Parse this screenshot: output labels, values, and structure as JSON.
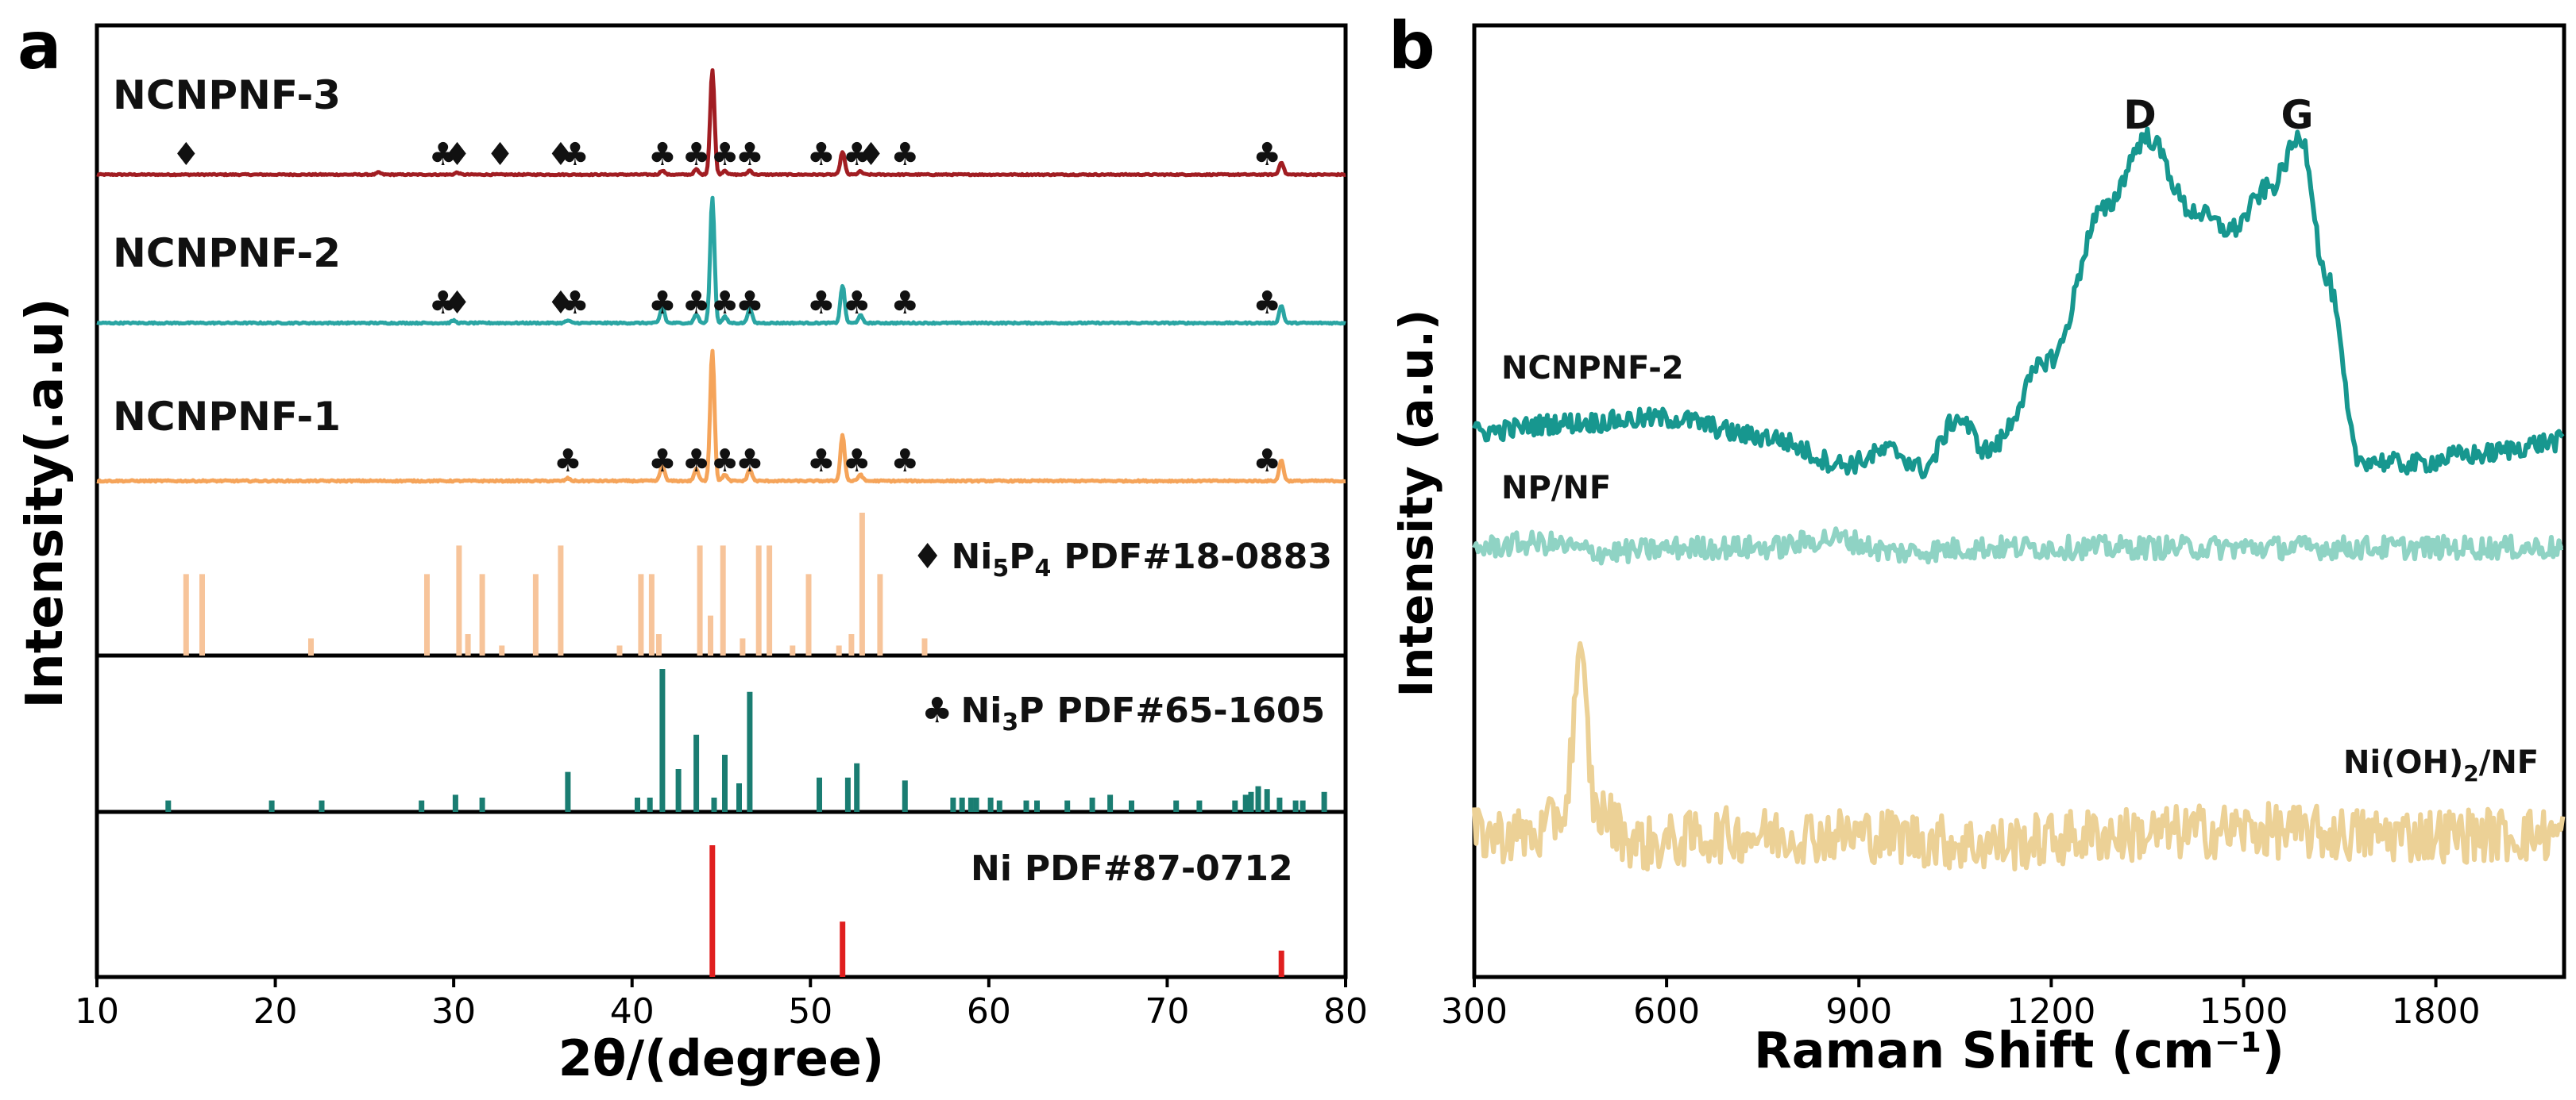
{
  "panels": {
    "a": {
      "letter": "a",
      "xlabel": "2θ/(degree)",
      "ylabel": "Intensity(.a.u)",
      "xlim": [
        10,
        80
      ],
      "xticks": [
        10,
        20,
        30,
        40,
        50,
        60,
        70,
        80
      ],
      "samples": [
        {
          "name": "NCNPNF-3",
          "color": "#a11d22"
        },
        {
          "name": "NCNPNF-2",
          "color": "#2aa5a3"
        },
        {
          "name": "NCNPNF-1",
          "color": "#f5a45a"
        }
      ],
      "references": [
        {
          "marker": "♦",
          "formula_main": "Ni",
          "formula_sub": "5",
          "formula_after": "P",
          "formula_sub2": "4",
          "label": "PDF#18-0883",
          "color": "#f7c49a"
        },
        {
          "marker": "♣",
          "formula_main": "Ni",
          "formula_sub": "3",
          "formula_after": "P",
          "formula_sub2": "",
          "label": "PDF#65-1605",
          "color": "#1a7d72"
        },
        {
          "marker": "",
          "formula_main": "Ni",
          "formula_sub": "",
          "formula_after": "",
          "formula_sub2": "",
          "label": "PDF#87-0712",
          "color": "#e01f1f"
        }
      ]
    },
    "b": {
      "letter": "b",
      "xlabel": "Raman Shift (cm⁻¹)",
      "ylabel": "Intensity (a.u.)",
      "xlim": [
        300,
        2000
      ],
      "xticks": [
        300,
        600,
        900,
        1200,
        1500,
        1800
      ],
      "peak_labels": [
        {
          "text": "D",
          "x": 1350
        },
        {
          "text": "G",
          "x": 1590
        }
      ],
      "series": [
        {
          "name": "NCNPNF-2",
          "color": "#17978f"
        },
        {
          "name": "NP/NF",
          "color": "#8fd3c4"
        },
        {
          "name_main": "Ni(OH)",
          "name_sub": "2",
          "name_after": "/NF",
          "color": "#ecd196"
        }
      ]
    }
  },
  "chart_data": [
    {
      "type": "line",
      "panel": "a",
      "xlabel": "2θ/(degree)",
      "ylabel": "Intensity(.a.u)",
      "xlim": [
        10,
        80
      ],
      "series": [
        {
          "name": "NCNPNF-3",
          "peaks": [
            [
              44.5,
              1.0
            ],
            [
              51.8,
              0.22
            ],
            [
              76.4,
              0.12
            ],
            [
              41.7,
              0.04
            ],
            [
              43.6,
              0.05
            ],
            [
              45.2,
              0.04
            ],
            [
              46.6,
              0.04
            ],
            [
              52.8,
              0.03
            ],
            [
              25.8,
              0.02
            ],
            [
              30.2,
              0.02
            ]
          ]
        },
        {
          "name": "NCNPNF-2",
          "peaks": [
            [
              44.5,
              1.0
            ],
            [
              51.8,
              0.3
            ],
            [
              76.4,
              0.14
            ],
            [
              41.7,
              0.13
            ],
            [
              43.6,
              0.07
            ],
            [
              45.2,
              0.05
            ],
            [
              46.6,
              0.12
            ],
            [
              52.8,
              0.06
            ],
            [
              30.0,
              0.02
            ],
            [
              36.4,
              0.02
            ]
          ]
        },
        {
          "name": "NCNPNF-1",
          "peaks": [
            [
              44.5,
              1.0
            ],
            [
              51.8,
              0.35
            ],
            [
              76.4,
              0.16
            ],
            [
              41.7,
              0.12
            ],
            [
              43.6,
              0.09
            ],
            [
              45.2,
              0.05
            ],
            [
              46.6,
              0.09
            ],
            [
              52.8,
              0.05
            ],
            [
              36.4,
              0.02
            ]
          ]
        }
      ],
      "sample_markers": [
        {
          "name": "NCNPNF-3",
          "club": [
            29.4,
            36.8,
            41.7,
            43.6,
            45.2,
            46.6,
            50.6,
            52.6,
            55.3,
            75.6
          ],
          "diamond": [
            15.0,
            30.2,
            32.6,
            36.0,
            53.4
          ]
        },
        {
          "name": "NCNPNF-2",
          "club": [
            29.4,
            36.8,
            41.7,
            43.6,
            45.2,
            46.6,
            50.6,
            52.6,
            55.3,
            75.6
          ],
          "diamond": [
            30.2,
            36.0
          ]
        },
        {
          "name": "NCNPNF-1",
          "club": [
            36.4,
            41.7,
            43.6,
            45.2,
            46.6,
            50.6,
            52.6,
            55.3,
            75.6
          ],
          "diamond": []
        }
      ],
      "reference_lines": [
        {
          "name": "Ni5P4 PDF#18-0883",
          "lines": [
            [
              15.0,
              0.57
            ],
            [
              15.9,
              0.57
            ],
            [
              22.0,
              0.12
            ],
            [
              28.5,
              0.57
            ],
            [
              30.3,
              0.77
            ],
            [
              30.8,
              0.15
            ],
            [
              31.6,
              0.57
            ],
            [
              32.7,
              0.07
            ],
            [
              34.6,
              0.57
            ],
            [
              36.0,
              0.77
            ],
            [
              39.3,
              0.07
            ],
            [
              40.5,
              0.57
            ],
            [
              41.1,
              0.57
            ],
            [
              41.5,
              0.15
            ],
            [
              43.8,
              0.77
            ],
            [
              44.4,
              0.28
            ],
            [
              45.1,
              0.77
            ],
            [
              46.2,
              0.12
            ],
            [
              47.1,
              0.77
            ],
            [
              47.7,
              0.77
            ],
            [
              49.0,
              0.07
            ],
            [
              49.9,
              0.57
            ],
            [
              51.6,
              0.07
            ],
            [
              52.3,
              0.15
            ],
            [
              52.9,
              1.0
            ],
            [
              53.9,
              0.57
            ],
            [
              56.4,
              0.12
            ]
          ]
        },
        {
          "name": "Ni3P PDF#65-1605",
          "lines": [
            [
              14.0,
              0.08
            ],
            [
              19.8,
              0.08
            ],
            [
              22.6,
              0.08
            ],
            [
              28.2,
              0.08
            ],
            [
              30.1,
              0.12
            ],
            [
              31.6,
              0.1
            ],
            [
              36.4,
              0.28
            ],
            [
              40.3,
              0.1
            ],
            [
              41.0,
              0.1
            ],
            [
              41.7,
              1.0
            ],
            [
              42.6,
              0.3
            ],
            [
              43.6,
              0.54
            ],
            [
              44.6,
              0.1
            ],
            [
              45.2,
              0.4
            ],
            [
              46.0,
              0.2
            ],
            [
              46.6,
              0.84
            ],
            [
              50.5,
              0.24
            ],
            [
              52.1,
              0.24
            ],
            [
              52.6,
              0.34
            ],
            [
              55.3,
              0.22
            ],
            [
              58.0,
              0.1
            ],
            [
              58.5,
              0.1
            ],
            [
              59.0,
              0.1
            ],
            [
              59.3,
              0.1
            ],
            [
              60.1,
              0.1
            ],
            [
              60.6,
              0.08
            ],
            [
              62.1,
              0.08
            ],
            [
              62.7,
              0.08
            ],
            [
              64.4,
              0.08
            ],
            [
              65.8,
              0.1
            ],
            [
              66.8,
              0.12
            ],
            [
              68.0,
              0.08
            ],
            [
              70.5,
              0.08
            ],
            [
              71.8,
              0.08
            ],
            [
              73.8,
              0.08
            ],
            [
              74.4,
              0.12
            ],
            [
              74.7,
              0.14
            ],
            [
              75.1,
              0.18
            ],
            [
              75.6,
              0.16
            ],
            [
              76.3,
              0.1
            ],
            [
              77.2,
              0.08
            ],
            [
              77.6,
              0.08
            ],
            [
              78.8,
              0.14
            ]
          ]
        },
        {
          "name": "Ni PDF#87-0712",
          "lines": [
            [
              44.5,
              1.0
            ],
            [
              51.8,
              0.42
            ],
            [
              76.4,
              0.2
            ]
          ]
        }
      ]
    },
    {
      "type": "line",
      "panel": "b",
      "xlabel": "Raman Shift (cm⁻¹)",
      "ylabel": "Intensity (a.u.)",
      "xlim": [
        300,
        2000
      ],
      "series": [
        {
          "name": "NCNPNF-2",
          "points": [
            [
              300,
              0.02
            ],
            [
              450,
              0.04
            ],
            [
              600,
              0.05
            ],
            [
              750,
              0.01
            ],
            [
              880,
              -0.05
            ],
            [
              950,
              -0.02
            ],
            [
              1000,
              -0.06
            ],
            [
              1055,
              0.05
            ],
            [
              1100,
              -0.02
            ],
            [
              1200,
              0.18
            ],
            [
              1280,
              0.5
            ],
            [
              1350,
              0.66
            ],
            [
              1420,
              0.5
            ],
            [
              1480,
              0.46
            ],
            [
              1540,
              0.55
            ],
            [
              1590,
              0.66
            ],
            [
              1630,
              0.35
            ],
            [
              1680,
              -0.04
            ],
            [
              1760,
              -0.05
            ],
            [
              1850,
              -0.03
            ],
            [
              2000,
              0.0
            ]
          ]
        },
        {
          "name": "NP/NF",
          "points": [
            [
              300,
              0.0
            ],
            [
              400,
              0.01
            ],
            [
              500,
              -0.01
            ],
            [
              650,
              0.0
            ],
            [
              760,
              0.0
            ],
            [
              860,
              0.02
            ],
            [
              960,
              -0.01
            ],
            [
              1100,
              0.0
            ],
            [
              1300,
              0.0
            ],
            [
              1500,
              0.0
            ],
            [
              1700,
              0.0
            ],
            [
              2000,
              0.0
            ]
          ]
        },
        {
          "name": "Ni(OH)2/NF",
          "points": [
            [
              300,
              0.0
            ],
            [
              400,
              0.0
            ],
            [
              440,
              0.05
            ],
            [
              465,
              0.37
            ],
            [
              490,
              0.05
            ],
            [
              560,
              -0.02
            ],
            [
              700,
              0.0
            ],
            [
              900,
              0.0
            ],
            [
              1100,
              -0.02
            ],
            [
              1300,
              0.0
            ],
            [
              1500,
              0.01
            ],
            [
              1700,
              0.0
            ],
            [
              2000,
              0.0
            ]
          ]
        }
      ],
      "peak_labels": [
        "D",
        "G"
      ]
    }
  ]
}
